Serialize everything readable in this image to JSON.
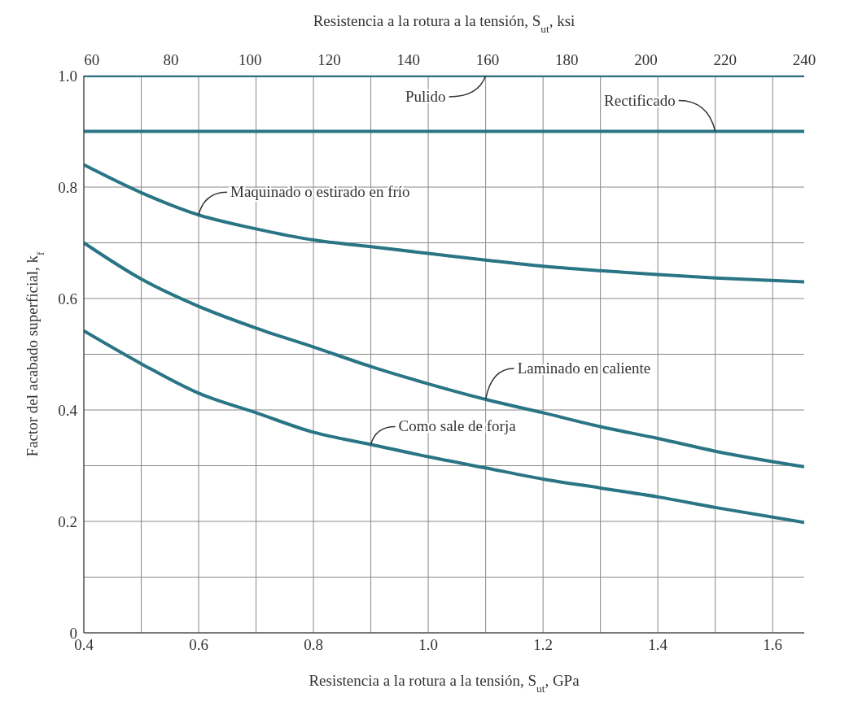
{
  "chart_data": {
    "type": "line",
    "xlabel": "Resistencia a la rotura a la tensión, S$_{ut}$, GPa",
    "x2label": "Resistencia a la rotura a la tensión, S$_{ut}$, ksi",
    "ylabel": "Factor del acabado superficial, k$_{f}$",
    "x": [
      0.4,
      0.5,
      0.6,
      0.7,
      0.8,
      0.9,
      1.0,
      1.1,
      1.2,
      1.3,
      1.4,
      1.5,
      1.655
    ],
    "series": [
      {
        "name": "Pulido",
        "color": "#2a7585",
        "values": [
          1.0,
          1.0,
          1.0,
          1.0,
          1.0,
          1.0,
          1.0,
          1.0,
          1.0,
          1.0,
          1.0,
          1.0,
          1.0
        ]
      },
      {
        "name": "Rectificado",
        "color": "#2a7585",
        "values": [
          0.9,
          0.9,
          0.9,
          0.9,
          0.9,
          0.9,
          0.9,
          0.9,
          0.9,
          0.9,
          0.9,
          0.9,
          0.9
        ]
      },
      {
        "name": "Maquinado o estirado en frío",
        "color": "#2a7585",
        "values": [
          0.84,
          0.79,
          0.75,
          0.725,
          0.705,
          0.693,
          0.681,
          0.669,
          0.658,
          0.65,
          0.643,
          0.637,
          0.63
        ]
      },
      {
        "name": "Laminado en caliente",
        "color": "#2a7585",
        "values": [
          0.7,
          0.635,
          0.586,
          0.547,
          0.513,
          0.478,
          0.447,
          0.419,
          0.395,
          0.37,
          0.349,
          0.326,
          0.298
        ]
      },
      {
        "name": "Como sale de forja",
        "color": "#2a7585",
        "values": [
          0.542,
          0.483,
          0.43,
          0.395,
          0.36,
          0.338,
          0.316,
          0.296,
          0.276,
          0.26,
          0.244,
          0.225,
          0.198
        ]
      }
    ],
    "xlim": [
      0.4,
      1.655
    ],
    "xticks": [
      {
        "value": 0.4,
        "label": "0.4"
      },
      {
        "value": 0.6,
        "label": "0.6"
      },
      {
        "value": 0.8,
        "label": "0.8"
      },
      {
        "value": 1.0,
        "label": "1.0"
      },
      {
        "value": 1.2,
        "label": "1.2"
      },
      {
        "value": 1.4,
        "label": "1.4"
      },
      {
        "value": 1.6,
        "label": "1.6"
      }
    ],
    "x2lim": [
      58,
      240
    ],
    "x2ticks": [
      60,
      80,
      100,
      120,
      140,
      160,
      180,
      200,
      220,
      240
    ],
    "ylim": [
      0,
      1.0
    ],
    "yticks": [
      0,
      {
        "value": 0.2,
        "label": "0.2"
      },
      {
        "value": 0.4,
        "label": "0.4"
      },
      {
        "value": 0.6,
        "label": "0.6"
      },
      {
        "value": 0.8,
        "label": "0.8"
      },
      {
        "value": 1.0,
        "label": "1.0"
      }
    ],
    "grid": true,
    "legend": false,
    "marker": "none",
    "line_style": "solid"
  }
}
